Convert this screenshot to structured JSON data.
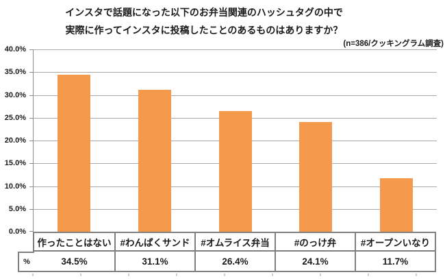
{
  "title": {
    "line1": "インスタで話題になった以下のお弁当関連のハッシュタグの中で",
    "line2": "実際に作ってインスタに投稿したことのあるものはありますか？"
  },
  "note": "(n=386/クッキングラム調査)",
  "colors": {
    "bar": "#F5994D",
    "gridline": "#A9A9A9",
    "axis": "#8C8C8C",
    "table_border": "#7F7F7F",
    "text": "#1A1A1A"
  },
  "chart_data": {
    "type": "bar",
    "title": "インスタで話題になった以下のお弁当関連のハッシュタグの中で 実際に作ってインスタに投稿したことのあるものはありますか？",
    "subtitle": "(n=386/クッキングラム調査)",
    "categories": [
      "作ったことはない",
      "#わんぱくサンド",
      "#オムライス弁当",
      "#のっけ弁",
      "#オープンいなり"
    ],
    "values": [
      34.5,
      31.1,
      26.4,
      24.1,
      11.7
    ],
    "value_labels": [
      "34.5%",
      "31.1%",
      "26.4%",
      "24.1%",
      "11.7%"
    ],
    "xlabel": "",
    "ylabel": "",
    "ylim": [
      0,
      40
    ],
    "ytick_step": 5,
    "ytick_labels": [
      "40.0%",
      "35.0%",
      "30.0%",
      "25.0%",
      "20.0%",
      "15.0%",
      "10.0%",
      "5.0%",
      "0.0%"
    ],
    "grid": true,
    "legend": false,
    "bar_color": "#F5994D",
    "data_table": {
      "row_label": "%",
      "rows": [
        {
          "label": "%",
          "values": [
            "34.5%",
            "31.1%",
            "26.4%",
            "24.1%",
            "11.7%"
          ]
        }
      ]
    }
  }
}
